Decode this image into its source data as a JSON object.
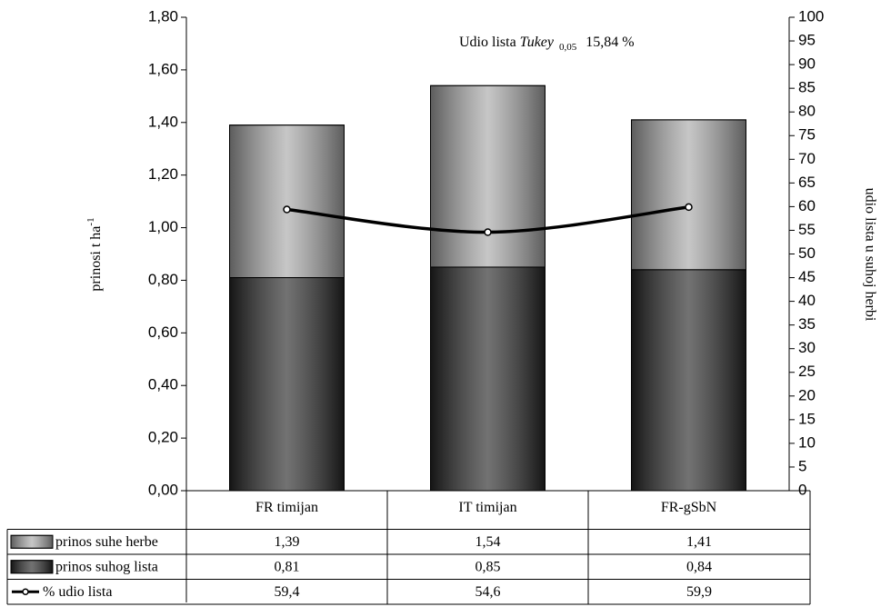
{
  "chart_data": {
    "type": "bar",
    "categories": [
      "FR timijan",
      "IT timijan",
      "FR-gSbN"
    ],
    "series": [
      {
        "name": "prinos suhe herbe",
        "color": "#a8a8a8",
        "values": [
          1.39,
          1.54,
          1.41
        ],
        "value_labels": [
          "1,39",
          "1,54",
          "1,41"
        ]
      },
      {
        "name": "prinos suhog lista",
        "color": "#262626",
        "values": [
          0.81,
          0.85,
          0.84
        ],
        "value_labels": [
          "0,81",
          "0,85",
          "0,84"
        ]
      },
      {
        "name": "% udio lista",
        "color": "#000000",
        "type": "line",
        "axis": "y2",
        "values": [
          59.4,
          54.6,
          59.9
        ],
        "value_labels": [
          "59,4",
          "54,6",
          "59,9"
        ]
      }
    ],
    "ylabel": "prinosi t ha",
    "ylabel_superscript": "-1",
    "y2label": "udio lista u suhoj herbi",
    "ylim": [
      0,
      1.8
    ],
    "yticks": [
      {
        "value": 0,
        "label": "0,00"
      },
      {
        "value": 0.2,
        "label": "0,20"
      },
      {
        "value": 0.4,
        "label": "0,40"
      },
      {
        "value": 0.6,
        "label": "0,60"
      },
      {
        "value": 0.8,
        "label": "0,80"
      },
      {
        "value": 1.0,
        "label": "1,00"
      },
      {
        "value": 1.2,
        "label": "1,20"
      },
      {
        "value": 1.4,
        "label": "1,40"
      },
      {
        "value": 1.6,
        "label": "1,60"
      },
      {
        "value": 1.8,
        "label": "1,80"
      }
    ],
    "y2lim": [
      0,
      100
    ],
    "y2ticks": [
      0,
      5,
      10,
      15,
      20,
      25,
      30,
      35,
      40,
      45,
      50,
      55,
      60,
      65,
      70,
      75,
      80,
      85,
      90,
      95,
      100
    ],
    "annotation": {
      "text": "Udio lista",
      "test": "Tukey",
      "subscript": "0,05",
      "value": "15,84 %"
    }
  }
}
